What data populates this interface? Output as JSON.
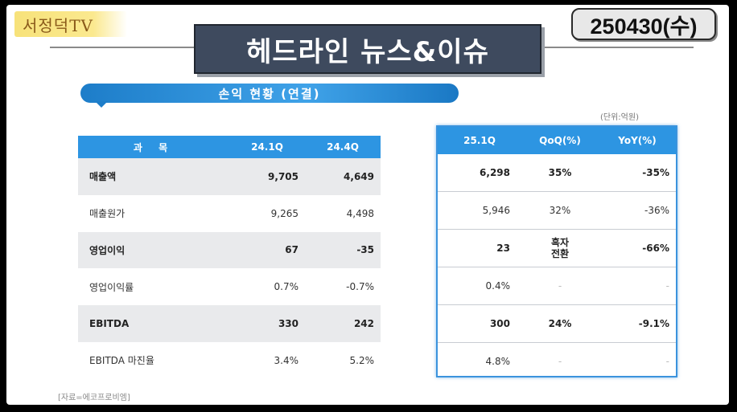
{
  "channel": {
    "name": "서정덕TV",
    "sub": ""
  },
  "date_badge": "250430(수)",
  "headline": "헤드라인 뉴스&이슈",
  "section_title": "손익 현황 (연결)",
  "unit_note": "(단위:억원)",
  "source_note": "[자료=에코프로비엠]",
  "table": {
    "left_headers": [
      "과 목",
      "24.1Q",
      "24.4Q"
    ],
    "right_headers": [
      "25.1Q",
      "QoQ(%)",
      "YoY(%)"
    ],
    "rows": [
      {
        "label": "매출액",
        "q1_24": "9,705",
        "q4_24": "4,649",
        "q1_25": "6,298",
        "qoq": "35%",
        "yoy": "-35%"
      },
      {
        "label": "매출원가",
        "q1_24": "9,265",
        "q4_24": "4,498",
        "q1_25": "5,946",
        "qoq": "32%",
        "yoy": "-36%"
      },
      {
        "label": "영업이익",
        "q1_24": "67",
        "q4_24": "-35",
        "q1_25": "23",
        "qoq": "흑자\n전환",
        "yoy": "-66%"
      },
      {
        "label": "영업이익률",
        "q1_24": "0.7%",
        "q4_24": "-0.7%",
        "q1_25": "0.4%",
        "qoq": "-",
        "yoy": "-"
      },
      {
        "label": "EBITDA",
        "q1_24": "330",
        "q4_24": "242",
        "q1_25": "300",
        "qoq": "24%",
        "yoy": "-9.1%"
      },
      {
        "label": "EBITDA 마진율",
        "q1_24": "3.4%",
        "q4_24": "5.2%",
        "q1_25": "4.8%",
        "qoq": "-",
        "yoy": "-"
      }
    ]
  },
  "colors": {
    "header_blue": "#2d95e2",
    "headline_bg": "#3e4a5e",
    "logo_yellow": "#f7e27a"
  }
}
